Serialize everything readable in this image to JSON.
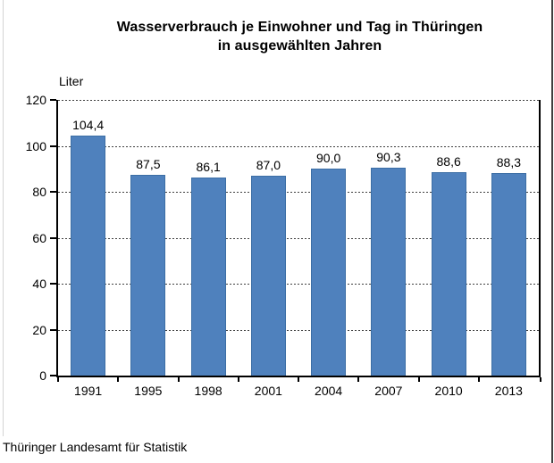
{
  "header": {
    "title_line1": "Wasserverbrauch je Einwohner und Tag in Thüringen",
    "title_line2": "in ausgewählten Jahren"
  },
  "footer": {
    "source": "Thüringer Landesamt für Statistik"
  },
  "chart_data": {
    "type": "bar",
    "title": "Wasserverbrauch je Einwohner und Tag in Thüringen in ausgewählten Jahren",
    "unit_label": "Liter",
    "xlabel": "",
    "ylabel": "Liter",
    "categories": [
      "1991",
      "1995",
      "1998",
      "2001",
      "2004",
      "2007",
      "2010",
      "2013"
    ],
    "values": [
      104.4,
      87.5,
      86.1,
      87.0,
      90.0,
      90.3,
      88.6,
      88.3
    ],
    "value_labels": [
      "104,4",
      "87,5",
      "86,1",
      "87,0",
      "90,0",
      "90,3",
      "88,6",
      "88,3"
    ],
    "ylim": [
      0,
      120
    ],
    "yticks": [
      0,
      20,
      40,
      60,
      80,
      100,
      120
    ],
    "grid": "horizontal-dashed",
    "legend": "none",
    "bar_color": "#4f81bd",
    "bar_border_color": "#3c6ea5",
    "axis_color": "#000000",
    "gridline_color": "#3f3f3f"
  }
}
